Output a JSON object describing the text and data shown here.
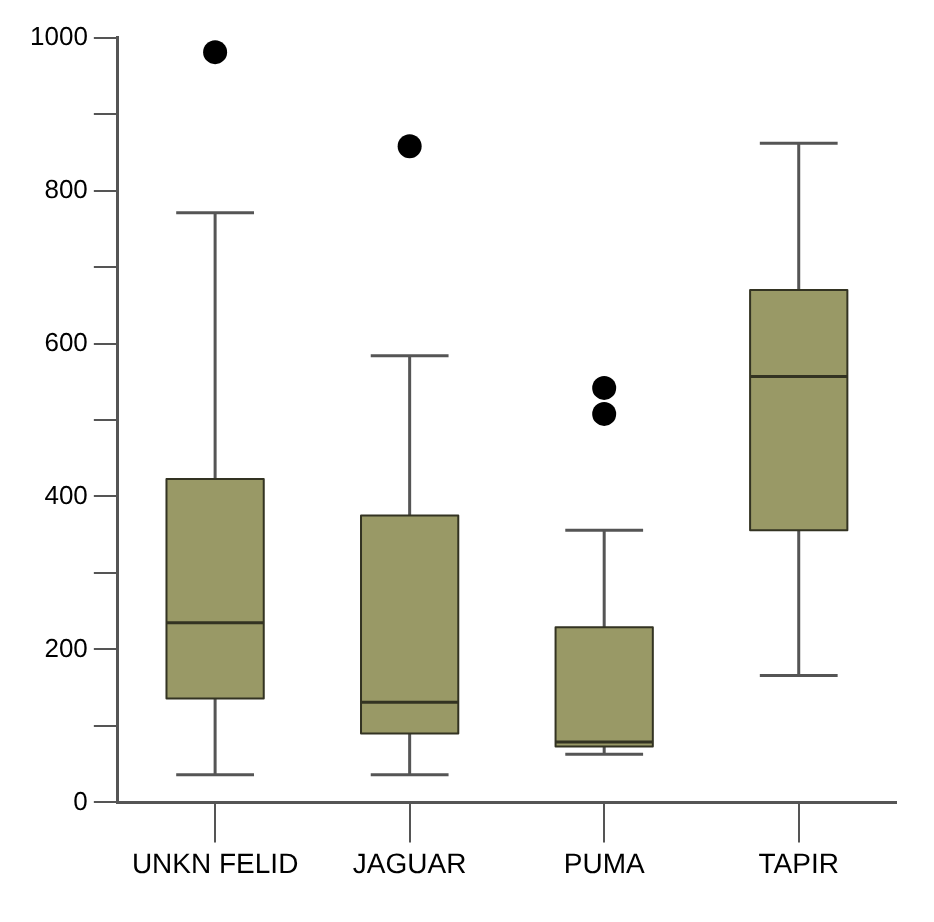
{
  "chart_data": {
    "type": "box",
    "categories": [
      "UNKN FELID",
      "JAGUAR",
      "PUMA",
      "TAPIR"
    ],
    "color": "#999966",
    "boxes": [
      {
        "low": 36,
        "q1": 136,
        "median": 235,
        "q3": 423,
        "high": 771,
        "outliers": [
          981
        ]
      },
      {
        "low": 36,
        "q1": 90,
        "median": 131,
        "q3": 375,
        "high": 584,
        "outliers": [
          858
        ]
      },
      {
        "low": 63,
        "q1": 73,
        "median": 79,
        "q3": 229,
        "high": 356,
        "outliers": [
          542,
          508
        ]
      },
      {
        "low": 166,
        "q1": 356,
        "median": 557,
        "q3": 670,
        "high": 862
      }
    ],
    "ylim": [
      0,
      1000
    ],
    "yticks": [
      0,
      {
        "value": 100,
        "label": null
      },
      200,
      {
        "value": 300,
        "label": null
      },
      400,
      {
        "value": 500,
        "label": null
      },
      600,
      {
        "value": 700,
        "label": null
      },
      800,
      {
        "value": 900,
        "label": null
      },
      1000
    ],
    "grid": false,
    "legend": false
  }
}
